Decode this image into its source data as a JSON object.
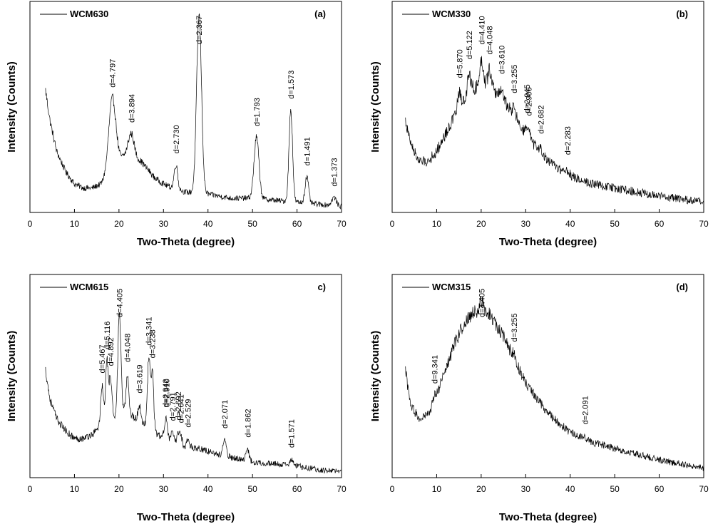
{
  "chart_data": [
    {
      "type": "line",
      "panel_label": "(a)",
      "series": [
        {
          "name": "WCM630"
        }
      ],
      "xlabel": "Two-Theta (degree)",
      "ylabel": "Intensity (Counts)",
      "xlim": [
        0,
        70
      ],
      "xticks": [
        0,
        10,
        20,
        30,
        40,
        50,
        60,
        70
      ],
      "yticks_shown": false,
      "baseline": {
        "x": [
          3.5,
          4.5,
          6,
          8,
          10,
          12,
          14,
          16,
          20,
          22,
          25,
          28,
          30,
          32,
          35,
          40,
          45,
          50,
          55,
          60,
          65,
          70
        ],
        "y": [
          0.6,
          0.45,
          0.3,
          0.2,
          0.14,
          0.12,
          0.12,
          0.14,
          0.25,
          0.3,
          0.25,
          0.17,
          0.14,
          0.12,
          0.1,
          0.09,
          0.07,
          0.07,
          0.06,
          0.05,
          0.04,
          0.03
        ]
      },
      "peaks": [
        {
          "x": 18.5,
          "height": 0.35,
          "width": 0.8,
          "label": "d=4.797"
        },
        {
          "x": 22.8,
          "height": 0.1,
          "width": 0.6,
          "label": "d=3.894"
        },
        {
          "x": 32.8,
          "height": 0.12,
          "width": 0.4,
          "label": "d=2.730"
        },
        {
          "x": 38.0,
          "height": 0.87,
          "width": 0.55,
          "label": "d=2.367"
        },
        {
          "x": 50.9,
          "height": 0.3,
          "width": 0.55,
          "label": "d=1.793"
        },
        {
          "x": 58.6,
          "height": 0.45,
          "width": 0.4,
          "label": "d=1.573"
        },
        {
          "x": 62.2,
          "height": 0.13,
          "width": 0.4,
          "label": "d=1.491"
        },
        {
          "x": 68.3,
          "height": 0.04,
          "width": 0.5,
          "label": "d=1.373"
        }
      ],
      "noise": 0.04
    },
    {
      "type": "line",
      "panel_label": "(b)",
      "series": [
        {
          "name": "WCM330"
        }
      ],
      "xlabel": "Two-Theta (degree)",
      "ylabel": "Intensity (Counts)",
      "xlim": [
        0,
        70
      ],
      "xticks": [
        0,
        10,
        20,
        30,
        40,
        50,
        60,
        70
      ],
      "yticks_shown": false,
      "baseline": {
        "x": [
          3,
          4,
          6,
          8,
          10,
          14,
          18,
          20,
          22,
          26,
          30,
          35,
          40,
          45,
          50,
          60,
          70
        ],
        "y": [
          0.45,
          0.35,
          0.25,
          0.25,
          0.3,
          0.47,
          0.6,
          0.63,
          0.62,
          0.52,
          0.38,
          0.25,
          0.18,
          0.14,
          0.12,
          0.08,
          0.05
        ]
      },
      "peaks": [
        {
          "x": 15.1,
          "height": 0.08,
          "width": 0.4,
          "label": "d=5.870"
        },
        {
          "x": 17.3,
          "height": 0.1,
          "width": 0.4,
          "label": "d=5.122"
        },
        {
          "x": 27.4,
          "height": 0.04,
          "width": 0.4,
          "label": "d=3.255"
        },
        {
          "x": 20.1,
          "height": 0.12,
          "width": 0.4,
          "label": "d=4.410"
        },
        {
          "x": 21.9,
          "height": 0.08,
          "width": 0.4,
          "label": "d=4.048"
        },
        {
          "x": 24.6,
          "height": 0.05,
          "width": 0.4,
          "label": "d=3.610"
        },
        {
          "x": 30.3,
          "height": 0.03,
          "width": 0.4,
          "label": "d=2.945"
        },
        {
          "x": 30.7,
          "height": 0.02,
          "width": 0.4,
          "label": "d=2.906"
        },
        {
          "x": 33.4,
          "height": 0.02,
          "width": 0.4,
          "label": "d=2.682"
        },
        {
          "x": 39.4,
          "height": 0.02,
          "width": 0.4,
          "label": "d=2.283"
        }
      ],
      "noise": 0.06
    },
    {
      "type": "line",
      "panel_label": "c)",
      "series": [
        {
          "name": "WCM615"
        }
      ],
      "xlabel": "Two-Theta (degree)",
      "ylabel": "Intensity (Counts)",
      "xlim": [
        0,
        70
      ],
      "xticks": [
        0,
        10,
        20,
        30,
        40,
        50,
        60,
        70
      ],
      "yticks_shown": false,
      "baseline": {
        "x": [
          3.5,
          4.5,
          6,
          8,
          10,
          12,
          14,
          16,
          18,
          20,
          22,
          24,
          26,
          28,
          30,
          34,
          38,
          42,
          46,
          50,
          55,
          60,
          65,
          70
        ],
        "y": [
          0.55,
          0.4,
          0.3,
          0.24,
          0.2,
          0.2,
          0.22,
          0.27,
          0.3,
          0.33,
          0.33,
          0.3,
          0.27,
          0.23,
          0.2,
          0.16,
          0.15,
          0.12,
          0.1,
          0.08,
          0.07,
          0.06,
          0.04,
          0.03
        ]
      },
      "peaks": [
        {
          "x": 16.2,
          "height": 0.2,
          "width": 0.3,
          "label": "d=5.467"
        },
        {
          "x": 17.3,
          "height": 0.3,
          "width": 0.3,
          "label": "d=5.116"
        },
        {
          "x": 18.1,
          "height": 0.2,
          "width": 0.3,
          "label": "d=4.892"
        },
        {
          "x": 20.1,
          "height": 0.5,
          "width": 0.35,
          "label": "d=4.405"
        },
        {
          "x": 21.9,
          "height": 0.2,
          "width": 0.3,
          "label": "d=4.048"
        },
        {
          "x": 24.6,
          "height": 0.08,
          "width": 0.3,
          "label": "d=3.619"
        },
        {
          "x": 26.7,
          "height": 0.35,
          "width": 0.3,
          "label": "d=3.341"
        },
        {
          "x": 27.5,
          "height": 0.3,
          "width": 0.3,
          "label": "d=3.238"
        },
        {
          "x": 30.4,
          "height": 0.06,
          "width": 0.3,
          "label": "d=2.942"
        },
        {
          "x": 30.7,
          "height": 0.07,
          "width": 0.3,
          "label": "d=2.910"
        },
        {
          "x": 32.0,
          "height": 0.05,
          "width": 0.3,
          "label": "d=2.791"
        },
        {
          "x": 33.3,
          "height": 0.06,
          "width": 0.3,
          "label": "d=2.692"
        },
        {
          "x": 33.9,
          "height": 0.05,
          "width": 0.3,
          "label": "d=2.641"
        },
        {
          "x": 35.5,
          "height": 0.04,
          "width": 0.3,
          "label": "d=2.529"
        },
        {
          "x": 43.7,
          "height": 0.08,
          "width": 0.35,
          "label": "d=2.071"
        },
        {
          "x": 48.9,
          "height": 0.06,
          "width": 0.35,
          "label": "d=1.862"
        },
        {
          "x": 58.7,
          "height": 0.03,
          "width": 0.35,
          "label": "d=1.571"
        }
      ],
      "noise": 0.045
    },
    {
      "type": "line",
      "panel_label": "(d)",
      "series": [
        {
          "name": "WCM315"
        }
      ],
      "xlabel": "Two-Theta (degree)",
      "ylabel": "Intensity (Counts)",
      "xlim": [
        0,
        70
      ],
      "xticks": [
        0,
        10,
        20,
        30,
        40,
        50,
        60,
        70
      ],
      "yticks_shown": false,
      "baseline": {
        "x": [
          3,
          4,
          6,
          8,
          10,
          12,
          14,
          16,
          18,
          20,
          22,
          25,
          28,
          30,
          35,
          40,
          45,
          50,
          55,
          60,
          65,
          70
        ],
        "y": [
          0.55,
          0.38,
          0.3,
          0.32,
          0.42,
          0.55,
          0.68,
          0.78,
          0.84,
          0.86,
          0.83,
          0.72,
          0.58,
          0.48,
          0.33,
          0.23,
          0.18,
          0.15,
          0.12,
          0.09,
          0.07,
          0.05
        ]
      },
      "peaks": [
        {
          "x": 9.5,
          "height": 0.02,
          "width": 0.4,
          "label": "d=9.341"
        },
        {
          "x": 20.1,
          "height": 0.04,
          "width": 0.4,
          "label": "d=4.405"
        },
        {
          "x": 27.4,
          "height": 0.02,
          "width": 0.4,
          "label": "d=3.255"
        },
        {
          "x": 43.3,
          "height": 0.01,
          "width": 0.4,
          "label": "d=2.091"
        }
      ],
      "noise": 0.05
    }
  ]
}
